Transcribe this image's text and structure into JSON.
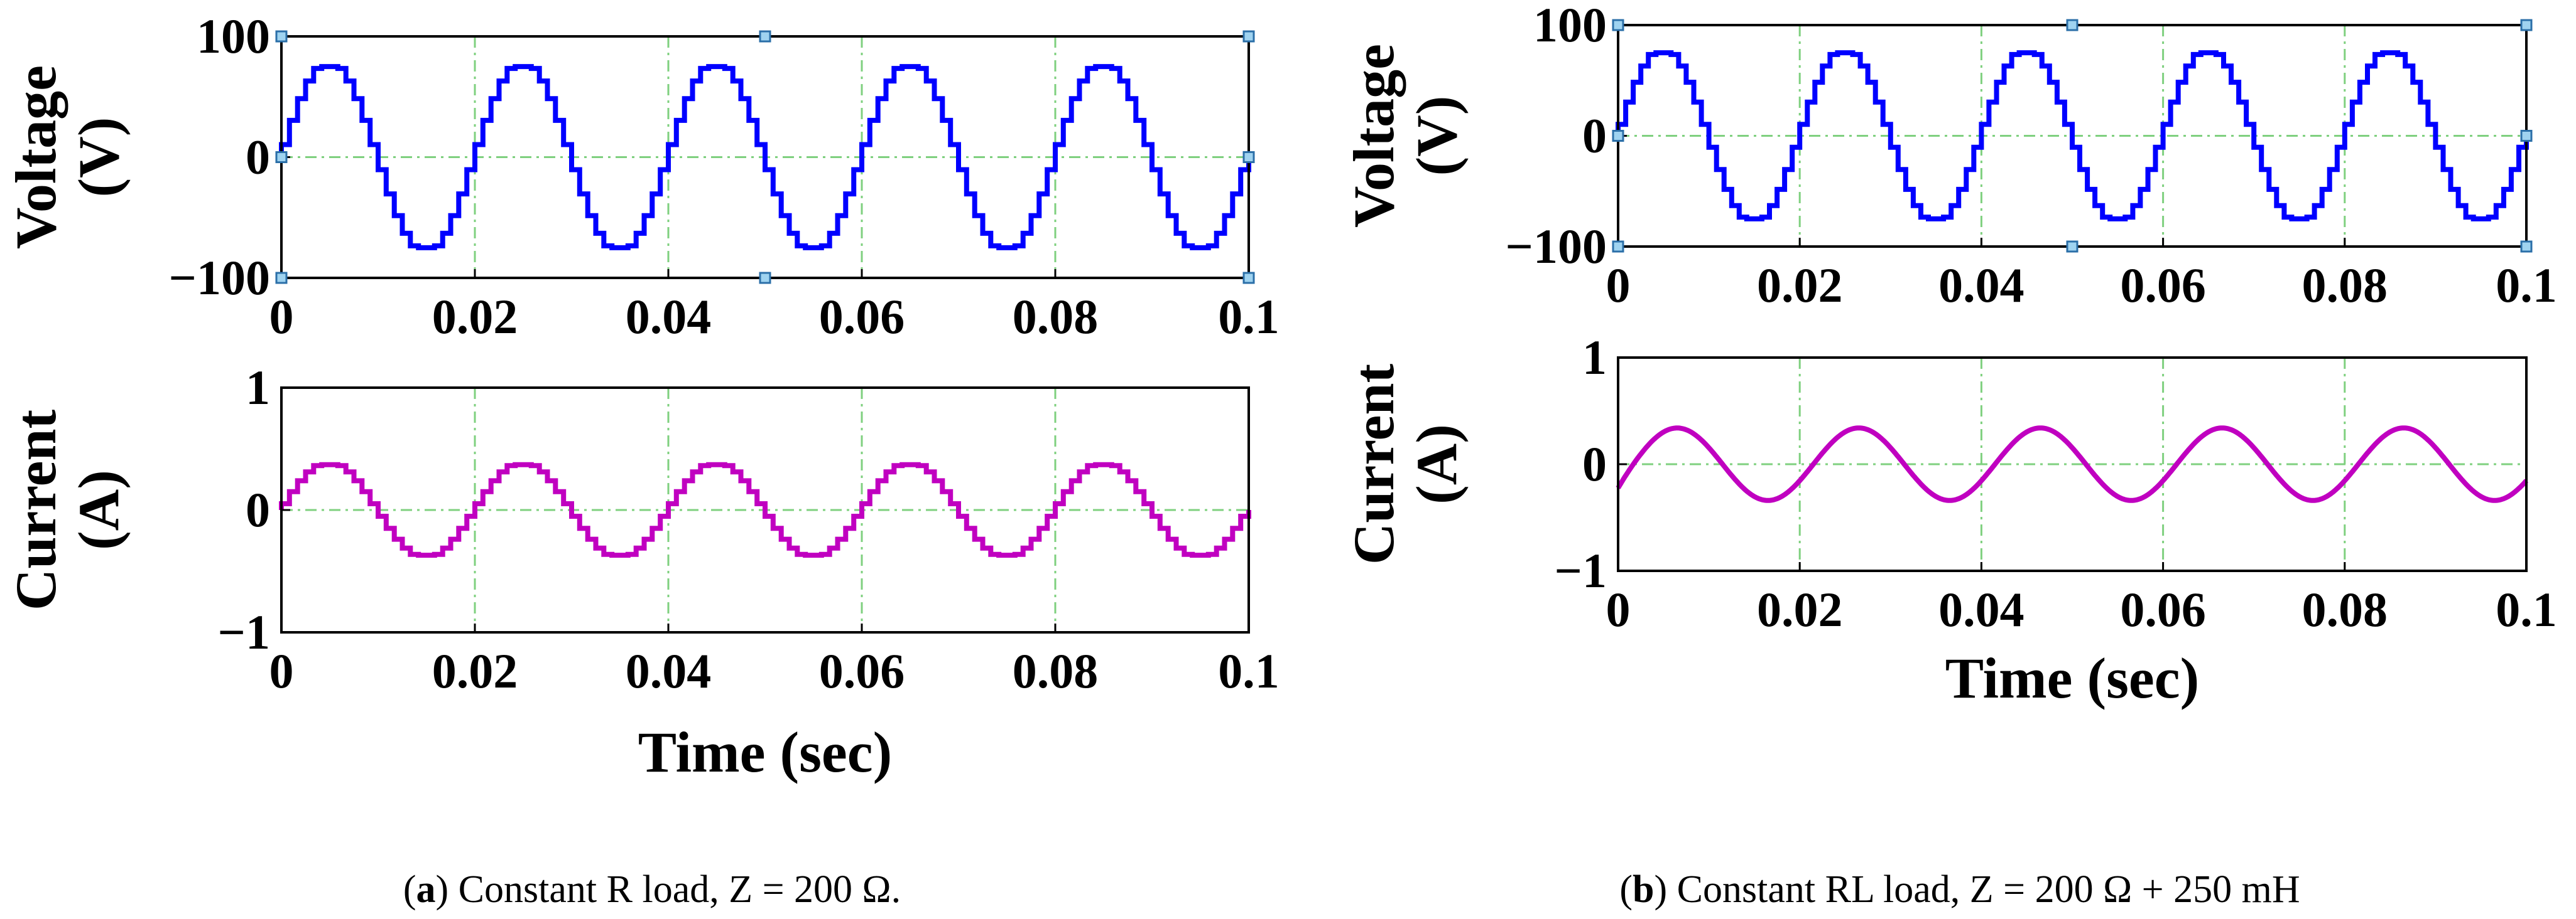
{
  "colors": {
    "voltage": "#0000ff",
    "current": "#c000c0",
    "grid": "#7fd07f",
    "frame": "#000000",
    "marker_fill": "#9fd3f0",
    "marker_stroke": "#2b6fa8"
  },
  "captions": {
    "a_letter": "a",
    "a_text": " Constant R load, Z = 200 Ω.",
    "b_letter": "b",
    "b_text": " Constant RL load, Z = 200 Ω + 250 mH"
  },
  "chart_data": [
    {
      "id": "a-voltage",
      "type": "line",
      "panel": "a",
      "series": [
        {
          "name": "Voltage",
          "color_key": "voltage",
          "amplitude": 75,
          "frequency_hz": 50,
          "phase_deg": 0,
          "waveform": "staircase",
          "steps_per_cycle": 24
        }
      ],
      "xlim": [
        0,
        0.1
      ],
      "ylim": [
        -100,
        100
      ],
      "xticks": [
        "0",
        "0.02",
        "0.04",
        "0.06",
        "0.08",
        "0.1"
      ],
      "yticks": [
        "100",
        "0",
        "−100"
      ],
      "ylabel_line1": "Voltage",
      "ylabel_line2": "(V)",
      "xlabel": "",
      "grid": true,
      "markers": true
    },
    {
      "id": "a-current",
      "type": "line",
      "panel": "a",
      "series": [
        {
          "name": "Current",
          "color_key": "current",
          "amplitude": 0.37,
          "frequency_hz": 50,
          "phase_deg": 0,
          "waveform": "staircase",
          "steps_per_cycle": 24
        }
      ],
      "xlim": [
        0,
        0.1
      ],
      "ylim": [
        -1,
        1
      ],
      "xticks": [
        "0",
        "0.02",
        "0.04",
        "0.06",
        "0.08",
        "0.1"
      ],
      "yticks": [
        "1",
        "0",
        "−1"
      ],
      "ylabel_line1": "Current",
      "ylabel_line2": "(A)",
      "xlabel": "Time (sec)",
      "grid": true,
      "markers": false
    },
    {
      "id": "b-voltage",
      "type": "line",
      "panel": "b",
      "series": [
        {
          "name": "Voltage",
          "color_key": "voltage",
          "amplitude": 75,
          "frequency_hz": 50,
          "phase_deg": 0,
          "waveform": "staircase",
          "steps_per_cycle": 24
        }
      ],
      "xlim": [
        0,
        0.1
      ],
      "ylim": [
        -100,
        100
      ],
      "xticks": [
        "0",
        "0.02",
        "0.04",
        "0.06",
        "0.08",
        "0.1"
      ],
      "yticks": [
        "100",
        "0",
        "−100"
      ],
      "ylabel_line1": "Voltage",
      "ylabel_line2": "(V)",
      "xlabel": "",
      "grid": true,
      "markers": true
    },
    {
      "id": "b-current",
      "type": "line",
      "panel": "b",
      "series": [
        {
          "name": "Current",
          "color_key": "current",
          "amplitude": 0.34,
          "frequency_hz": 50,
          "phase_deg": -27,
          "waveform": "sine",
          "steps_per_cycle": 0
        }
      ],
      "xlim": [
        0,
        0.1
      ],
      "ylim": [
        -1,
        1
      ],
      "xticks": [
        "0",
        "0.02",
        "0.04",
        "0.06",
        "0.08",
        "0.1"
      ],
      "yticks": [
        "1",
        "0",
        "−1"
      ],
      "ylabel_line1": "Current",
      "ylabel_line2": "(A)",
      "xlabel": "Time (sec)",
      "grid": true,
      "markers": false
    }
  ]
}
